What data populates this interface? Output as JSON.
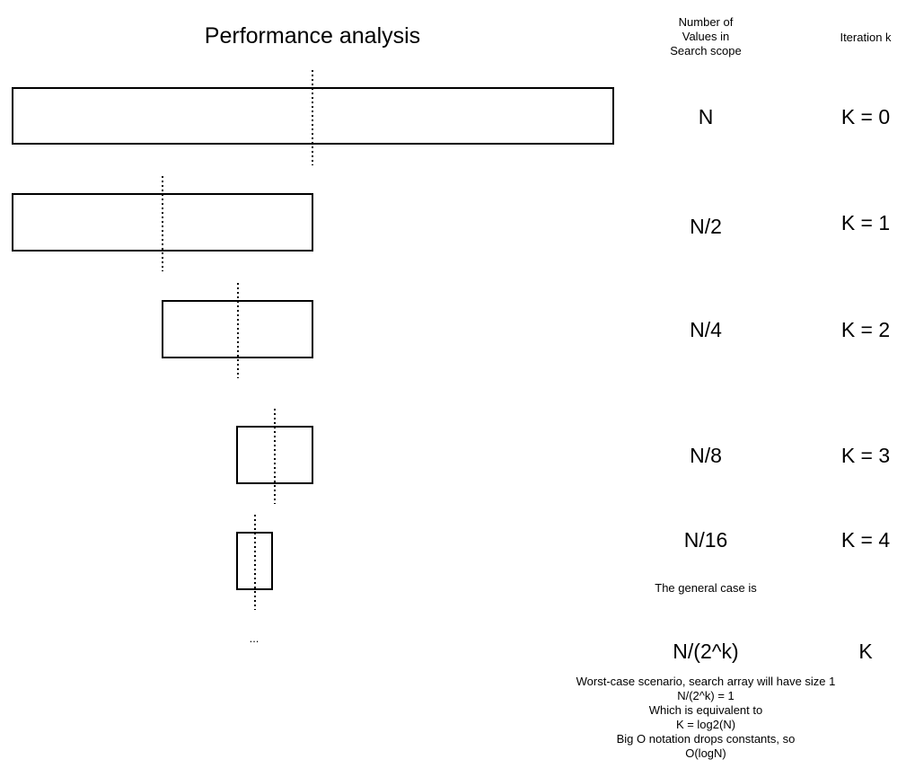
{
  "title": "Performance analysis",
  "columns": {
    "values_header": "Number of\nValues in\nSearch scope",
    "iteration_header": "Iteration k"
  },
  "rows": [
    {
      "values": "N",
      "iteration": "K = 0"
    },
    {
      "values": "N/2",
      "iteration": "K = 1"
    },
    {
      "values": "N/4",
      "iteration": "K = 2"
    },
    {
      "values": "N/8",
      "iteration": "K = 3"
    },
    {
      "values": "N/16",
      "iteration": "K = 4"
    }
  ],
  "general": {
    "label": "The general case is",
    "values": "N/(2^k)",
    "iteration": "K"
  },
  "ellipsis": "...",
  "notes": [
    "Worst-case scenario, search array will have size 1",
    "N/(2^k) = 1",
    "Which is equivalent to",
    "K = log2(N)",
    "Big O notation drops constants, so",
    "O(logN)"
  ]
}
